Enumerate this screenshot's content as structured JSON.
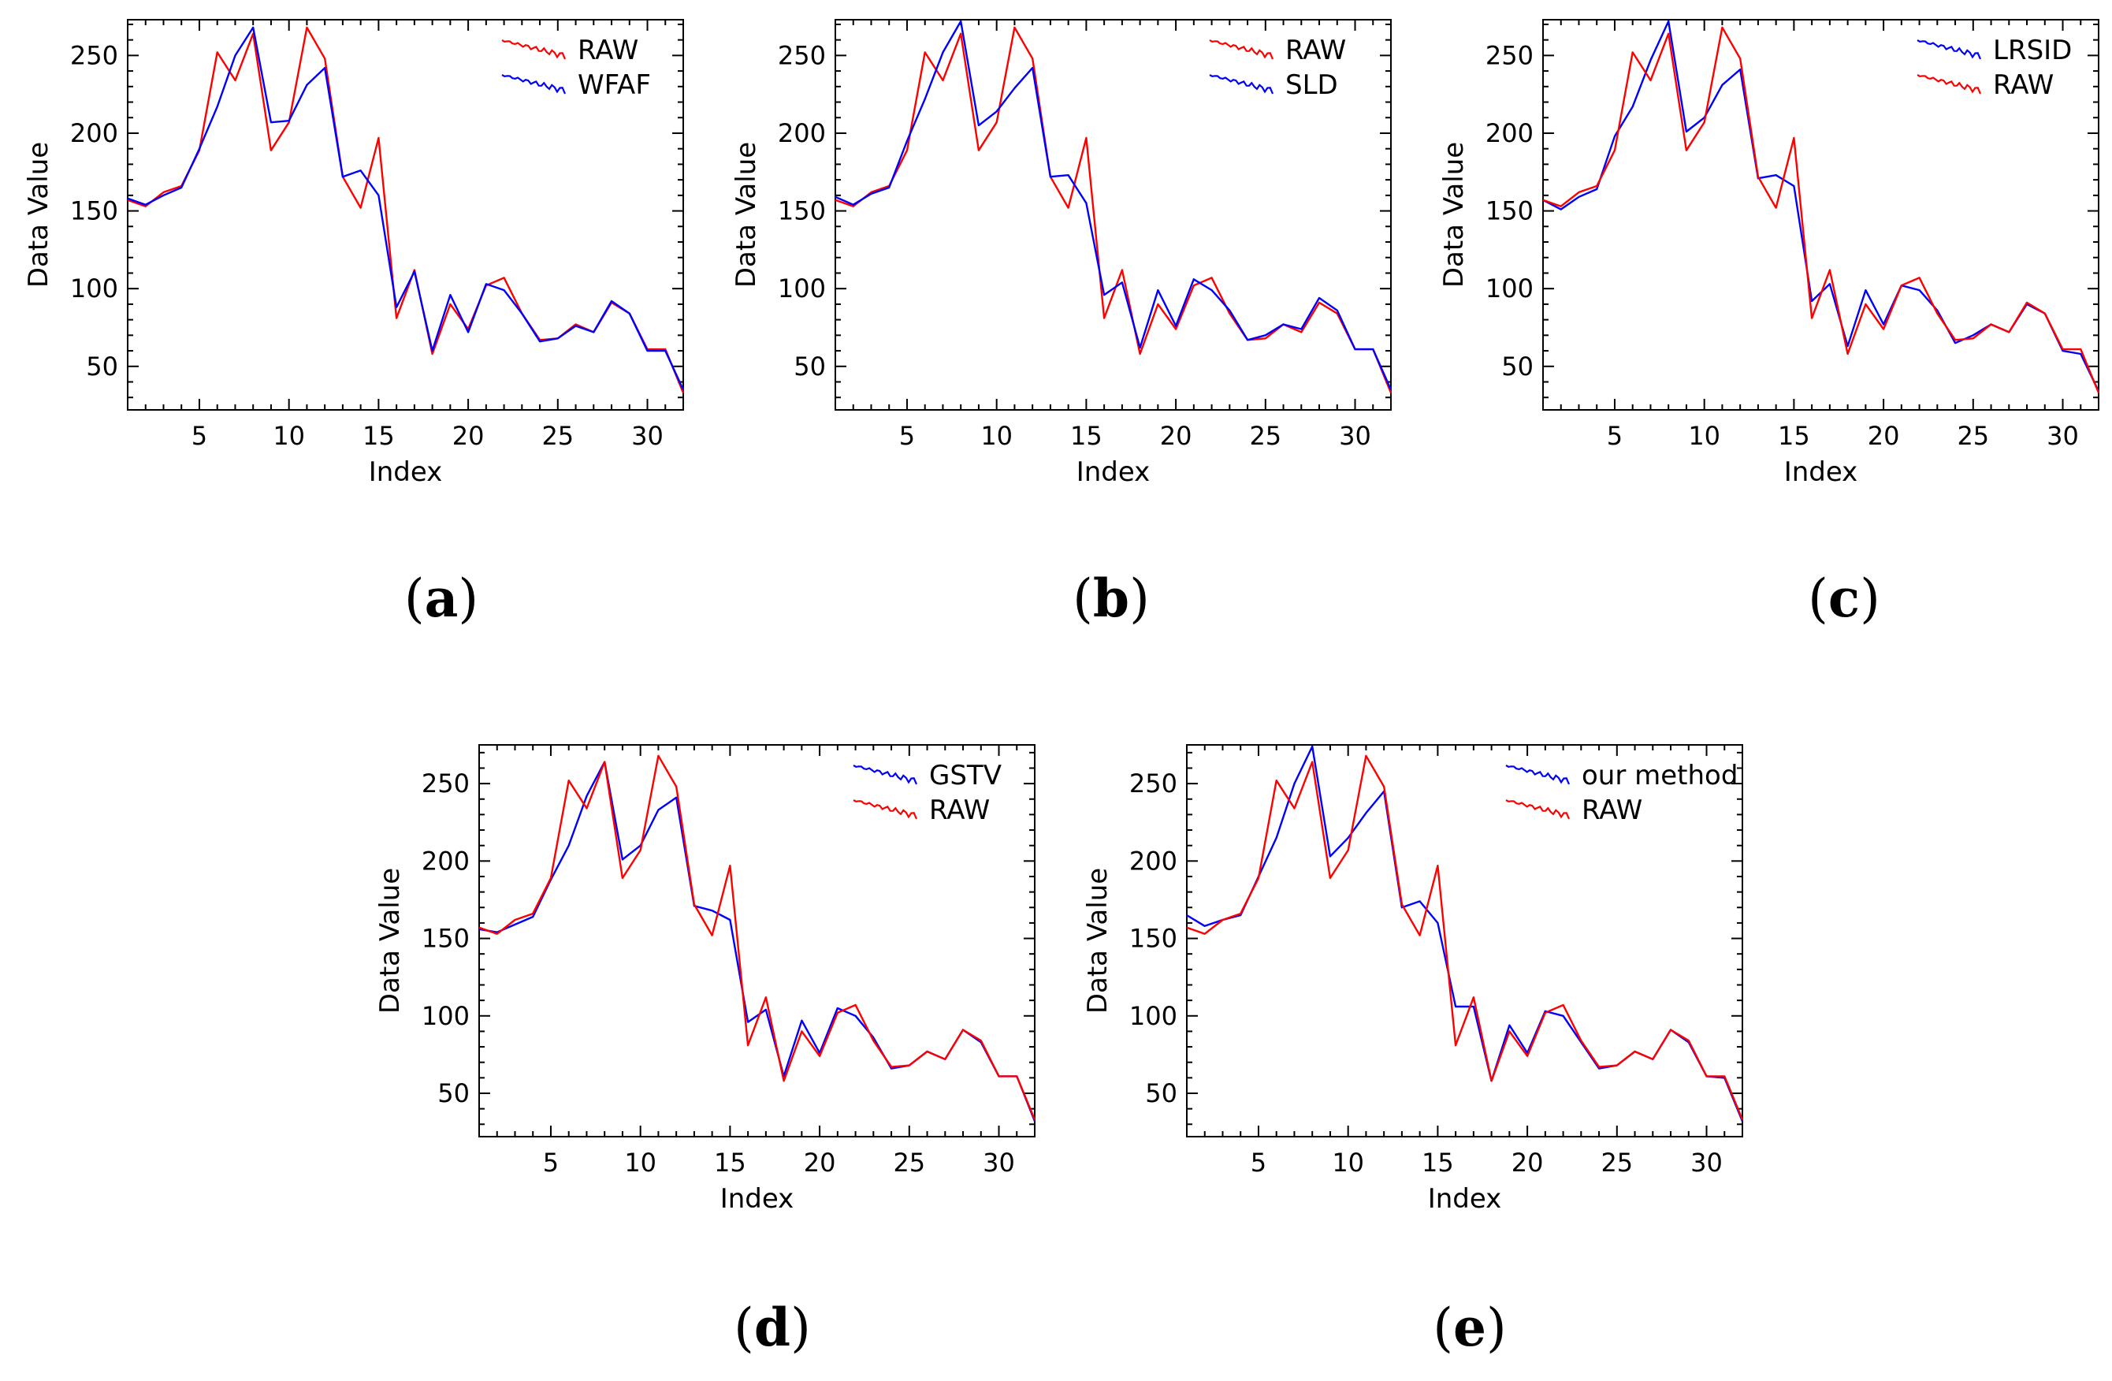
{
  "figure": {
    "index": [
      1,
      2,
      3,
      4,
      5,
      6,
      7,
      8,
      9,
      10,
      11,
      12,
      13,
      14,
      15,
      16,
      17,
      18,
      19,
      20,
      21,
      22,
      23,
      24,
      25,
      26,
      27,
      28,
      29,
      30,
      31,
      32
    ],
    "colors": {
      "raw": "#ff0000",
      "method": "#0000ff",
      "axis": "#000000",
      "text": "#000000"
    }
  },
  "chart_data": [
    {
      "type": "line",
      "panel_label": "a",
      "xlabel": "Index",
      "ylabel": "Data Value",
      "xlim": [
        1,
        32
      ],
      "ylim": [
        22,
        273
      ],
      "xticks": [
        5,
        10,
        15,
        20,
        25,
        30
      ],
      "yticks": [
        50,
        100,
        150,
        200,
        250
      ],
      "grid": false,
      "legend_position": "top-right",
      "legend_order": [
        "RAW",
        "WFAF"
      ],
      "series": [
        {
          "name": "RAW",
          "color": "#ff0000",
          "values": [
            157,
            153,
            162,
            166,
            189,
            252,
            234,
            264,
            189,
            207,
            268,
            248,
            172,
            152,
            197,
            81,
            112,
            58,
            90,
            74,
            102,
            107,
            84,
            67,
            68,
            77,
            72,
            91,
            84,
            61,
            61,
            33
          ]
        },
        {
          "name": "WFAF",
          "color": "#0000ff",
          "values": [
            158,
            154,
            160,
            165,
            190,
            217,
            250,
            268,
            207,
            208,
            231,
            242,
            172,
            176,
            160,
            88,
            111,
            60,
            96,
            72,
            103,
            99,
            84,
            66,
            68,
            76,
            72,
            92,
            84,
            60,
            60,
            35
          ]
        }
      ]
    },
    {
      "type": "line",
      "panel_label": "b",
      "xlabel": "Index",
      "ylabel": "Data Value",
      "xlim": [
        1,
        32
      ],
      "ylim": [
        22,
        273
      ],
      "xticks": [
        5,
        10,
        15,
        20,
        25,
        30
      ],
      "yticks": [
        50,
        100,
        150,
        200,
        250
      ],
      "grid": false,
      "legend_position": "top-right",
      "legend_order": [
        "RAW",
        "SLD"
      ],
      "series": [
        {
          "name": "RAW",
          "color": "#ff0000",
          "values": [
            157,
            153,
            162,
            166,
            189,
            252,
            234,
            264,
            189,
            207,
            268,
            248,
            172,
            152,
            197,
            81,
            112,
            58,
            90,
            74,
            102,
            107,
            84,
            67,
            68,
            77,
            72,
            91,
            84,
            61,
            61,
            33
          ]
        },
        {
          "name": "SLD",
          "color": "#0000ff",
          "values": [
            159,
            154,
            161,
            165,
            195,
            222,
            252,
            272,
            205,
            214,
            229,
            242,
            172,
            173,
            155,
            96,
            104,
            62,
            99,
            76,
            106,
            99,
            86,
            67,
            70,
            77,
            74,
            94,
            86,
            61,
            61,
            35
          ]
        }
      ]
    },
    {
      "type": "line",
      "panel_label": "c",
      "xlabel": "Index",
      "ylabel": "Data Value",
      "xlim": [
        1,
        32
      ],
      "ylim": [
        22,
        273
      ],
      "xticks": [
        5,
        10,
        15,
        20,
        25,
        30
      ],
      "yticks": [
        50,
        100,
        150,
        200,
        250
      ],
      "grid": false,
      "legend_position": "top-right",
      "legend_order": [
        "LRSID",
        "RAW"
      ],
      "series": [
        {
          "name": "LRSID",
          "color": "#0000ff",
          "values": [
            157,
            151,
            159,
            164,
            198,
            217,
            247,
            272,
            201,
            210,
            231,
            241,
            171,
            173,
            166,
            92,
            103,
            63,
            99,
            77,
            102,
            99,
            86,
            65,
            70,
            77,
            72,
            90,
            84,
            60,
            58,
            34
          ]
        },
        {
          "name": "RAW",
          "color": "#ff0000",
          "values": [
            157,
            153,
            162,
            166,
            189,
            252,
            234,
            264,
            189,
            207,
            268,
            248,
            172,
            152,
            197,
            81,
            112,
            58,
            90,
            74,
            102,
            107,
            84,
            67,
            68,
            77,
            72,
            91,
            84,
            61,
            61,
            33
          ]
        }
      ]
    },
    {
      "type": "line",
      "panel_label": "d",
      "xlabel": "Index",
      "ylabel": "Data Value",
      "xlim": [
        1,
        32
      ],
      "ylim": [
        22,
        275
      ],
      "xticks": [
        5,
        10,
        15,
        20,
        25,
        30
      ],
      "yticks": [
        50,
        100,
        150,
        200,
        250
      ],
      "grid": false,
      "legend_position": "top-right",
      "legend_order": [
        "GSTV",
        "RAW"
      ],
      "series": [
        {
          "name": "GSTV",
          "color": "#0000ff",
          "values": [
            156,
            154,
            159,
            164,
            188,
            210,
            242,
            264,
            201,
            210,
            233,
            241,
            171,
            168,
            162,
            96,
            104,
            61,
            97,
            76,
            105,
            100,
            86,
            66,
            68,
            77,
            72,
            91,
            83,
            61,
            61,
            32
          ]
        },
        {
          "name": "RAW",
          "color": "#ff0000",
          "values": [
            157,
            153,
            162,
            166,
            189,
            252,
            234,
            264,
            189,
            207,
            268,
            248,
            172,
            152,
            197,
            81,
            112,
            58,
            90,
            74,
            102,
            107,
            84,
            67,
            68,
            77,
            72,
            91,
            84,
            61,
            61,
            33
          ]
        }
      ]
    },
    {
      "type": "line",
      "panel_label": "e",
      "xlabel": "Index",
      "ylabel": "Data Value",
      "xlim": [
        1,
        32
      ],
      "ylim": [
        22,
        275
      ],
      "xticks": [
        5,
        10,
        15,
        20,
        25,
        30
      ],
      "yticks": [
        50,
        100,
        150,
        200,
        250
      ],
      "grid": false,
      "legend_position": "top-right",
      "legend_order": [
        "our method",
        "RAW"
      ],
      "series": [
        {
          "name": "our method",
          "color": "#0000ff",
          "values": [
            165,
            158,
            162,
            165,
            190,
            215,
            250,
            274,
            203,
            215,
            231,
            245,
            170,
            174,
            160,
            106,
            106,
            58,
            94,
            76,
            103,
            100,
            83,
            66,
            68,
            77,
            72,
            91,
            83,
            61,
            60,
            32
          ]
        },
        {
          "name": "RAW",
          "color": "#ff0000",
          "values": [
            157,
            153,
            162,
            166,
            189,
            252,
            234,
            264,
            189,
            207,
            268,
            248,
            172,
            152,
            197,
            81,
            112,
            58,
            90,
            74,
            102,
            107,
            84,
            67,
            68,
            77,
            72,
            91,
            84,
            61,
            61,
            33
          ]
        }
      ]
    }
  ]
}
